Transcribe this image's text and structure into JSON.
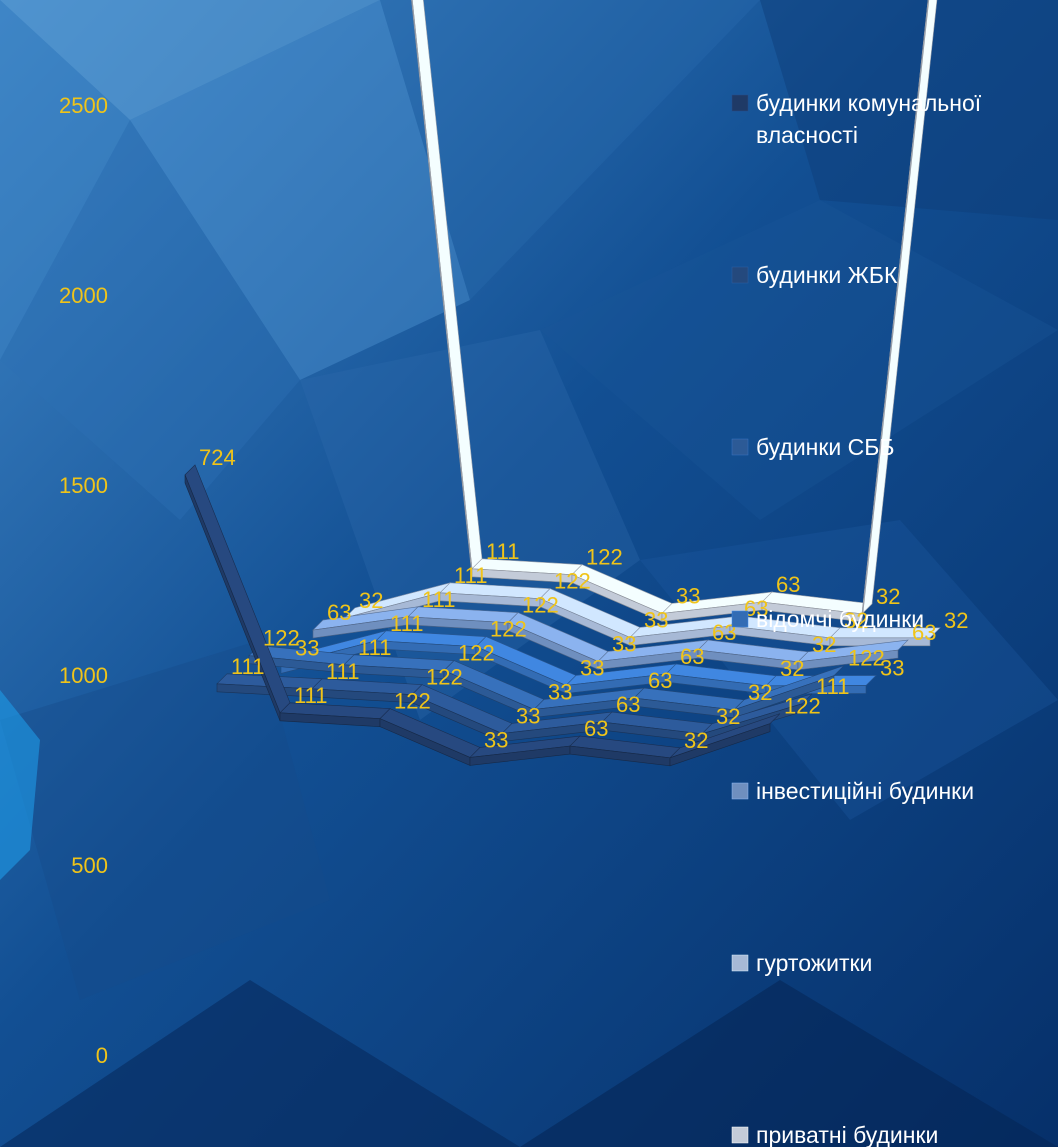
{
  "chart_data": {
    "type": "line",
    "title": "",
    "xlabel": "",
    "ylabel": "",
    "ylim": [
      0,
      2500
    ],
    "yticks": [
      0,
      500,
      1000,
      1500,
      2000,
      2500
    ],
    "grid": false,
    "legend_position": "right",
    "x": [
      "1",
      "2",
      "3",
      "4",
      "5",
      "6",
      "7"
    ],
    "series": [
      {
        "name": "будинки комунальної власності",
        "color": "#1f3a66",
        "values": [
          724,
          111,
          122,
          33,
          63,
          32,
          122
        ]
      },
      {
        "name": "будинки ЖБК",
        "color": "#24497d",
        "values": [
          111,
          111,
          122,
          33,
          63,
          32,
          111
        ]
      },
      {
        "name": "будинки СББ",
        "color": "#2c5a96",
        "values": [
          122,
          111,
          122,
          33,
          63,
          32,
          122
        ]
      },
      {
        "name": "відомчі будинки",
        "color": "#336cb4",
        "values": [
          33,
          111,
          122,
          33,
          63,
          32,
          33
        ]
      },
      {
        "name": "інвестиційні будинки",
        "color": "#6f8fbf",
        "values": [
          63,
          111,
          122,
          33,
          63,
          32,
          63
        ]
      },
      {
        "name": "гуртожитки",
        "color": "#a7b9d6",
        "values": [
          32,
          111,
          122,
          33,
          63,
          32,
          32
        ]
      },
      {
        "name": "приватні будинки",
        "color": "#c3cbd8",
        "values": [
          2479,
          111,
          122,
          33,
          63,
          32,
          2479
        ]
      }
    ]
  }
}
